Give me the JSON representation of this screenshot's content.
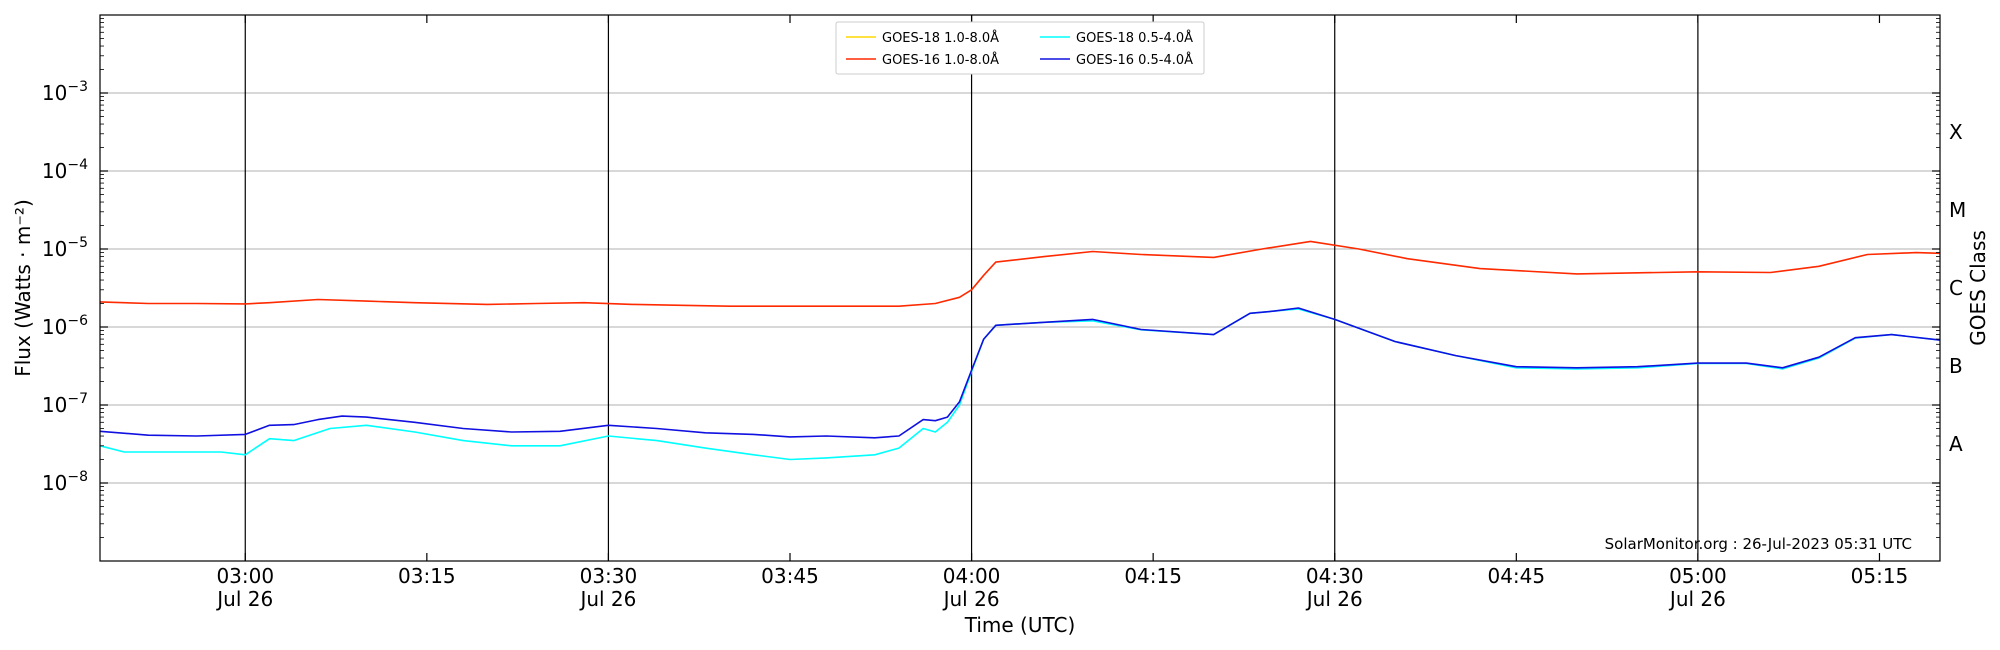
{
  "chart_data": {
    "type": "line",
    "title": "",
    "xlabel": "Time (UTC)",
    "ylabel": "Flux (Watts · m⁻²)",
    "y2label": "GOES Class",
    "yscale": "log",
    "ylim": [
      1e-09,
      0.01
    ],
    "xlim": [
      "02:48",
      "05:20"
    ],
    "grid": "horizontal at decades, vertical at half hours",
    "legend_position": "top-center",
    "credit": "SolarMonitor.org : 26-Jul-2023 05:31 UTC",
    "y_ticks": [
      {
        "value": 1e-08,
        "base": "10",
        "exp": "−8"
      },
      {
        "value": 1e-07,
        "base": "10",
        "exp": "−7"
      },
      {
        "value": 1e-06,
        "base": "10",
        "exp": "−6"
      },
      {
        "value": 1e-05,
        "base": "10",
        "exp": "−5"
      },
      {
        "value": 0.0001,
        "base": "10",
        "exp": "−4"
      },
      {
        "value": 0.001,
        "base": "10",
        "exp": "−3"
      }
    ],
    "class_labels": [
      {
        "label": "A",
        "value": 3.16e-08
      },
      {
        "label": "B",
        "value": 3.16e-07
      },
      {
        "label": "C",
        "value": 3.16e-06
      },
      {
        "label": "M",
        "value": 3.16e-05
      },
      {
        "label": "X",
        "value": 0.000316
      }
    ],
    "x_ticks": [
      {
        "time": "03:00",
        "line1": "03:00",
        "line2": "Jul 26",
        "major": true
      },
      {
        "time": "03:15",
        "line1": "03:15",
        "line2": "",
        "major": false
      },
      {
        "time": "03:30",
        "line1": "03:30",
        "line2": "Jul 26",
        "major": true
      },
      {
        "time": "03:45",
        "line1": "03:45",
        "line2": "",
        "major": false
      },
      {
        "time": "04:00",
        "line1": "04:00",
        "line2": "Jul 26",
        "major": true
      },
      {
        "time": "04:15",
        "line1": "04:15",
        "line2": "",
        "major": false
      },
      {
        "time": "04:30",
        "line1": "04:30",
        "line2": "Jul 26",
        "major": true
      },
      {
        "time": "04:45",
        "line1": "04:45",
        "line2": "",
        "major": false
      },
      {
        "time": "05:00",
        "line1": "05:00",
        "line2": "Jul 26",
        "major": true
      },
      {
        "time": "05:15",
        "line1": "05:15",
        "line2": "",
        "major": false
      }
    ],
    "series": [
      {
        "name": "GOES-18 1.0-8.0Å",
        "color": "#ffd700",
        "x": [],
        "values": []
      },
      {
        "name": "GOES-16 1.0-8.0Å",
        "color": "#ff2a00",
        "x": [
          "02:48",
          "02:52",
          "02:56",
          "03:00",
          "03:02",
          "03:06",
          "03:10",
          "03:14",
          "03:20",
          "03:24",
          "03:28",
          "03:32",
          "03:36",
          "03:40",
          "03:48",
          "03:54",
          "03:57",
          "03:59",
          "04:00",
          "04:01",
          "04:02",
          "04:06",
          "04:10",
          "04:14",
          "04:20",
          "04:24",
          "04:28",
          "04:32",
          "04:36",
          "04:42",
          "04:50",
          "05:00",
          "05:06",
          "05:10",
          "05:14",
          "05:18",
          "05:20"
        ],
        "values": [
          2.1e-06,
          2e-06,
          2e-06,
          1.98e-06,
          2.05e-06,
          2.25e-06,
          2.15e-06,
          2.05e-06,
          1.95e-06,
          2e-06,
          2.05e-06,
          1.95e-06,
          1.9e-06,
          1.85e-06,
          1.85e-06,
          1.85e-06,
          2e-06,
          2.4e-06,
          3e-06,
          4.6e-06,
          6.8e-06,
          8e-06,
          9.3e-06,
          8.5e-06,
          7.8e-06,
          1e-05,
          1.25e-05,
          1e-05,
          7.5e-06,
          5.6e-06,
          4.8e-06,
          5.1e-06,
          5e-06,
          6e-06,
          8.5e-06,
          9e-06,
          8.8e-06
        ]
      },
      {
        "name": "GOES-18 0.5-4.0Å",
        "color": "#00ffff",
        "x": [
          "02:48",
          "02:50",
          "02:56",
          "02:58",
          "03:00",
          "03:02",
          "03:04",
          "03:07",
          "03:10",
          "03:14",
          "03:18",
          "03:22",
          "03:26",
          "03:30",
          "03:34",
          "03:38",
          "03:42",
          "03:45",
          "03:48",
          "03:52",
          "03:54",
          "03:56",
          "03:57",
          "03:58",
          "03:59",
          "04:00",
          "04:01",
          "04:02",
          "04:04",
          "04:06",
          "04:10",
          "04:14",
          "04:20",
          "04:23",
          "04:25",
          "04:27",
          "04:30",
          "04:35",
          "04:40",
          "04:45",
          "04:50",
          "04:55",
          "05:00",
          "05:04",
          "05:07",
          "05:10",
          "05:13",
          "05:16",
          "05:20"
        ],
        "values": [
          3e-08,
          2.5e-08,
          2.5e-08,
          2.5e-08,
          2.3e-08,
          3.7e-08,
          3.5e-08,
          5e-08,
          5.5e-08,
          4.5e-08,
          3.5e-08,
          3e-08,
          3e-08,
          4e-08,
          3.5e-08,
          2.8e-08,
          2.3e-08,
          2e-08,
          2.1e-08,
          2.3e-08,
          2.8e-08,
          5e-08,
          4.5e-08,
          6e-08,
          1e-07,
          2.7e-07,
          7e-07,
          1.05e-06,
          1.1e-06,
          1.15e-06,
          1.2e-06,
          9.2e-07,
          8e-07,
          1.5e-06,
          1.6e-06,
          1.7e-06,
          1.25e-06,
          6.5e-07,
          4.3e-07,
          3e-07,
          2.9e-07,
          3e-07,
          3.4e-07,
          3.4e-07,
          2.9e-07,
          4e-07,
          7.2e-07,
          8e-07,
          6.8e-07
        ]
      },
      {
        "name": "GOES-16 0.5-4.0Å",
        "color": "#1010e0",
        "x": [
          "02:48",
          "02:52",
          "02:56",
          "03:00",
          "03:02",
          "03:04",
          "03:06",
          "03:08",
          "03:10",
          "03:14",
          "03:18",
          "03:22",
          "03:26",
          "03:30",
          "03:34",
          "03:38",
          "03:42",
          "03:45",
          "03:48",
          "03:52",
          "03:54",
          "03:56",
          "03:57",
          "03:58",
          "03:59",
          "04:00",
          "04:01",
          "04:02",
          "04:04",
          "04:06",
          "04:10",
          "04:14",
          "04:20",
          "04:23",
          "04:25",
          "04:27",
          "04:30",
          "04:35",
          "04:40",
          "04:45",
          "04:50",
          "04:55",
          "05:00",
          "05:04",
          "05:07",
          "05:10",
          "05:13",
          "05:16",
          "05:20"
        ],
        "values": [
          4.6e-08,
          4.1e-08,
          4e-08,
          4.2e-08,
          5.5e-08,
          5.6e-08,
          6.5e-08,
          7.2e-08,
          7e-08,
          6e-08,
          5e-08,
          4.5e-08,
          4.6e-08,
          5.5e-08,
          5e-08,
          4.4e-08,
          4.2e-08,
          3.9e-08,
          4e-08,
          3.8e-08,
          4e-08,
          6.5e-08,
          6.3e-08,
          7e-08,
          1.1e-07,
          2.8e-07,
          7e-07,
          1.05e-06,
          1.1e-06,
          1.15e-06,
          1.25e-06,
          9.3e-07,
          8e-07,
          1.5e-06,
          1.6e-06,
          1.75e-06,
          1.25e-06,
          6.5e-07,
          4.3e-07,
          3.1e-07,
          3e-07,
          3.1e-07,
          3.45e-07,
          3.45e-07,
          3e-07,
          4.1e-07,
          7.3e-07,
          8e-07,
          6.8e-07
        ]
      }
    ]
  }
}
